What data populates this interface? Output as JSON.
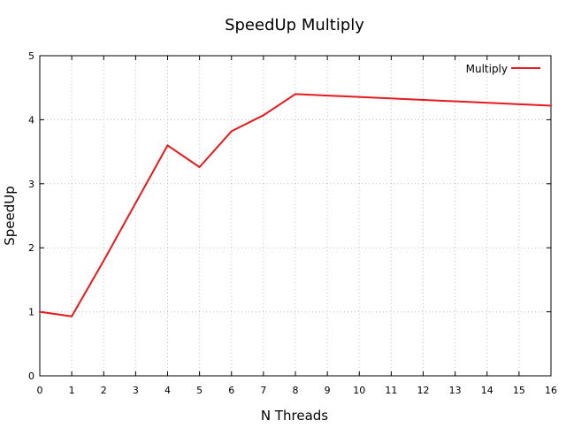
{
  "chart_data": {
    "type": "line",
    "title": "SpeedUp Multiply",
    "xlabel": "N Threads",
    "ylabel": "SpeedUp",
    "xlim": [
      0,
      16
    ],
    "ylim": [
      0,
      5
    ],
    "xticks": [
      0,
      1,
      2,
      3,
      4,
      5,
      6,
      7,
      8,
      9,
      10,
      11,
      12,
      13,
      14,
      15,
      16
    ],
    "yticks": [
      0,
      1,
      2,
      3,
      4,
      5
    ],
    "grid": true,
    "legend_position": "top-right",
    "series": [
      {
        "name": "Multiply",
        "color": "#e41a1c",
        "x": [
          0,
          1,
          2,
          4,
          5,
          6,
          7,
          8,
          16
        ],
        "y": [
          1.0,
          0.93,
          1.8,
          3.6,
          3.26,
          3.82,
          4.07,
          4.4,
          4.22
        ]
      }
    ]
  }
}
